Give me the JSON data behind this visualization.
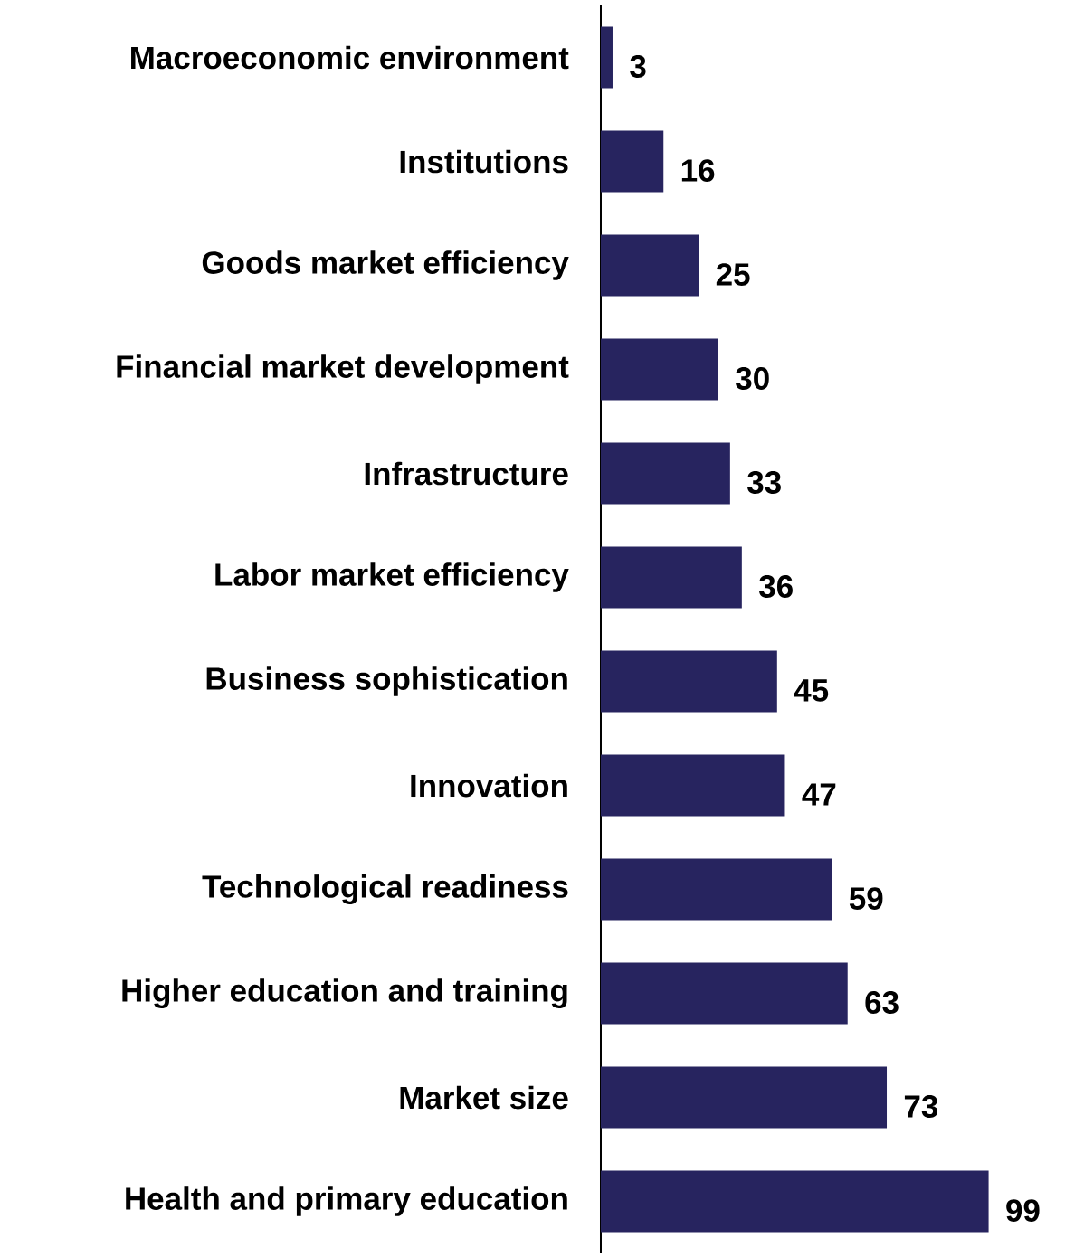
{
  "chart_data": {
    "type": "bar",
    "orientation": "horizontal",
    "categories": [
      "Macroeconomic environment",
      "Institutions",
      "Goods market efficiency",
      "Financial market development",
      "Infrastructure",
      "Labor market efficiency",
      "Business sophistication",
      "Innovation",
      "Technological readiness",
      "Higher education and training",
      "Market size",
      "Health and primary education"
    ],
    "values": [
      3,
      16,
      25,
      30,
      33,
      36,
      45,
      47,
      59,
      63,
      73,
      99
    ],
    "color": "#27245f",
    "data_labels": true,
    "tick_labels": "y"
  }
}
